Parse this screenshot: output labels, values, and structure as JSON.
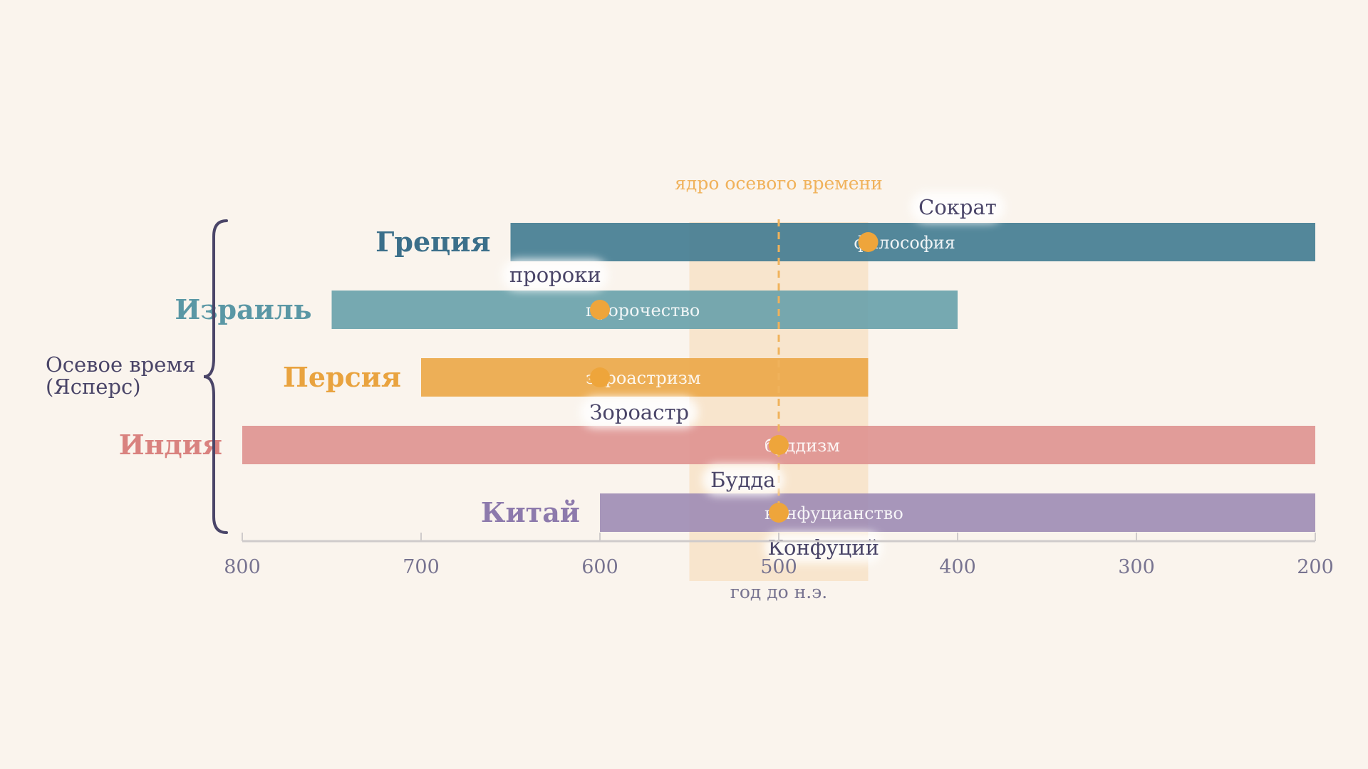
{
  "chart_data": {
    "type": "timeline",
    "x_direction": "reversed",
    "xlim": [
      800,
      200
    ],
    "xticks": [
      800,
      700,
      600,
      500,
      400,
      300,
      200
    ],
    "xlabel": "год до н.э.",
    "grouping_label_lines": [
      "Осевое время",
      "(Ясперс)"
    ],
    "core_band": {
      "label": "ядро осевого времени",
      "start": 550,
      "end": 450,
      "center": 500,
      "color": "#f0b25b"
    },
    "rows": [
      {
        "name": "Греция",
        "start": 650,
        "end": 200,
        "color": "#447d92",
        "name_color": "#3b6f8a",
        "movement": "философия",
        "event_year": 450,
        "person": "Сократ",
        "person_pos": "above",
        "person_year": 400
      },
      {
        "name": "Израиль",
        "start": 750,
        "end": 400,
        "color": "#6aa2ab",
        "name_color": "#5a97a5",
        "movement": "пророчество",
        "event_year": 600,
        "person": "пророки",
        "person_pos": "above",
        "person_year": 625
      },
      {
        "name": "Персия",
        "start": 700,
        "end": 450,
        "color": "#eca84a",
        "name_color": "#e9a33f",
        "movement": "зороастризм",
        "event_year": 600,
        "person": "Зороастр",
        "person_pos": "below",
        "person_year": 578
      },
      {
        "name": "Индия",
        "start": 800,
        "end": 200,
        "color": "#de9491",
        "name_color": "#d9827f",
        "movement": "буддизм",
        "event_year": 500,
        "person": "Будда",
        "person_pos": "below",
        "person_year": 520
      },
      {
        "name": "Китай",
        "start": 600,
        "end": 200,
        "color": "#9f8db5",
        "name_color": "#8d7aac",
        "movement": "конфуцианство",
        "event_year": 500,
        "person": "Конфуций",
        "person_pos": "below",
        "person_year": 475
      }
    ],
    "marker_color": "#eea53b",
    "text_color": "#4a4568",
    "axis_color": "#cfcbcb",
    "tick_label_color": "#777390"
  }
}
